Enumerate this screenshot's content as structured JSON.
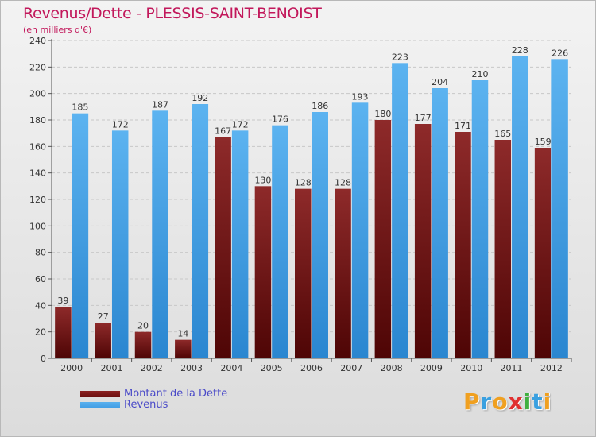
{
  "chart_data": {
    "type": "bar",
    "title": "Revenus/Dette - PLESSIS-SAINT-BENOIST",
    "subtitle": "(en milliers d'€)",
    "categories": [
      "2000",
      "2001",
      "2002",
      "2003",
      "2004",
      "2005",
      "2006",
      "2007",
      "2008",
      "2009",
      "2010",
      "2011",
      "2012"
    ],
    "series": [
      {
        "name": "Montant de la Dette",
        "color": "#7a1a1a",
        "values": [
          39,
          27,
          20,
          14,
          167,
          130,
          128,
          128,
          180,
          177,
          171,
          165,
          159
        ]
      },
      {
        "name": "Revenus",
        "color": "#3f9ce4",
        "values": [
          185,
          172,
          187,
          192,
          172,
          176,
          186,
          193,
          223,
          204,
          210,
          228,
          226
        ]
      }
    ],
    "y_ticks": [
      0,
      20,
      40,
      60,
      80,
      100,
      120,
      140,
      160,
      180,
      200,
      220,
      240
    ],
    "ylim": [
      0,
      240
    ],
    "xlabel": "",
    "ylabel": "",
    "grid": true,
    "legend_position": "bottom-left"
  },
  "legend": {
    "items": [
      {
        "label": "Montant de la Dette",
        "color": "#6b0f0f"
      },
      {
        "label": "Revenus",
        "color": "#3f9ce4"
      }
    ]
  },
  "logo": {
    "letters": [
      "P",
      "r",
      "o",
      "x",
      "i",
      "t",
      "i"
    ],
    "colors": [
      "#f0a020",
      "#3aa0e0",
      "#f0a020",
      "#e03030",
      "#40b040",
      "#3aa0e0",
      "#f0a020"
    ]
  }
}
